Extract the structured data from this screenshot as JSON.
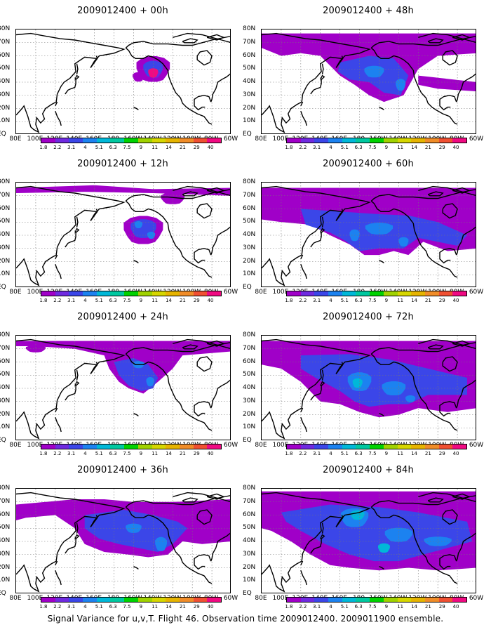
{
  "panels": [
    {
      "title": "2009012400 + 00h"
    },
    {
      "title": "2009012400 + 48h"
    },
    {
      "title": "2009012400 + 12h"
    },
    {
      "title": "2009012400 + 60h"
    },
    {
      "title": "2009012400 + 24h"
    },
    {
      "title": "2009012400 + 72h"
    },
    {
      "title": "2009012400 + 36h"
    },
    {
      "title": "2009012400 + 84h"
    }
  ],
  "lat_labels": [
    "80N",
    "70N",
    "60N",
    "50N",
    "40N",
    "30N",
    "20N",
    "10N",
    "EQ"
  ],
  "lon_labels": [
    "80E",
    "100E",
    "120E",
    "140E",
    "160E",
    "180",
    "160W",
    "140W",
    "120W",
    "100W",
    "80W",
    "60W"
  ],
  "colorbar": {
    "labels": [
      "1.8",
      "2.2",
      "3.1",
      "4",
      "5.1",
      "6.3",
      "7.5",
      "9",
      "11",
      "14",
      "21",
      "29",
      "40"
    ],
    "colors": [
      "#a000c8",
      "#6f2ae0",
      "#3b46e8",
      "#1c82f0",
      "#00b8d8",
      "#00c8a0",
      "#00d200",
      "#a0d200",
      "#d6d600",
      "#e6b400",
      "#f08c28",
      "#f05032",
      "#f00a82"
    ]
  },
  "caption": "Signal Variance for u,v,T. Flight 46. Observation time 2009012400. 2009011900 ensemble."
}
